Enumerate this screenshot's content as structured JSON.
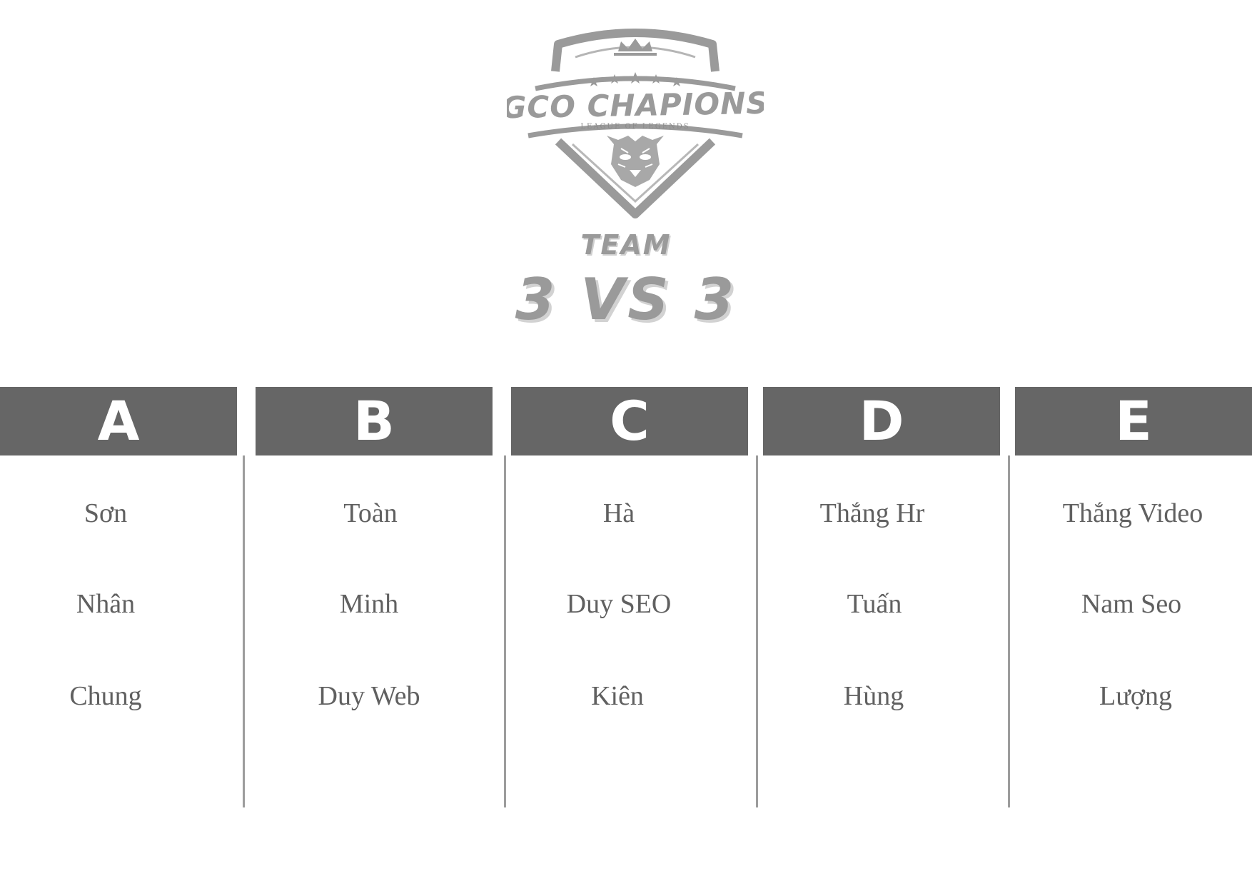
{
  "logo": {
    "title": "GCO CHAPIONS",
    "subtitle": "LEAGUE OF LEGENDS"
  },
  "event": {
    "team_label": "TEAM",
    "format_label": "3 VS 3"
  },
  "colors": {
    "header_bg": "#666666",
    "header_text": "#ffffff",
    "logo_gray": "#9a9a9a",
    "player_text": "#606060",
    "divider": "#9c9c9c"
  },
  "teams": [
    {
      "letter": "A",
      "players": [
        "Sơn",
        "Nhân",
        "Chung"
      ]
    },
    {
      "letter": "B",
      "players": [
        "Toàn",
        "Minh",
        "Duy Web"
      ]
    },
    {
      "letter": "C",
      "players": [
        "Hà",
        "Duy SEO",
        "Kiên"
      ]
    },
    {
      "letter": "D",
      "players": [
        "Thắng Hr",
        "Tuấn",
        "Hùng"
      ]
    },
    {
      "letter": "E",
      "players": [
        "Thắng Video",
        "Nam Seo",
        "Lượng"
      ]
    }
  ]
}
